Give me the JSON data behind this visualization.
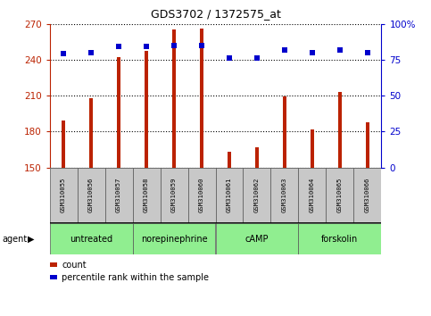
{
  "title": "GDS3702 / 1372575_at",
  "samples": [
    "GSM310055",
    "GSM310056",
    "GSM310057",
    "GSM310058",
    "GSM310059",
    "GSM310060",
    "GSM310061",
    "GSM310062",
    "GSM310063",
    "GSM310064",
    "GSM310065",
    "GSM310066"
  ],
  "counts": [
    189,
    208,
    242,
    247,
    265,
    266,
    163,
    167,
    209,
    182,
    213,
    188
  ],
  "percentiles": [
    79,
    80,
    84,
    84,
    85,
    85,
    76,
    76,
    82,
    80,
    82,
    80
  ],
  "ylim_left": [
    150,
    270
  ],
  "ylim_right": [
    0,
    100
  ],
  "yticks_left": [
    150,
    180,
    210,
    240,
    270
  ],
  "yticks_right": [
    0,
    25,
    50,
    75,
    100
  ],
  "ytick_labels_right": [
    "0",
    "25",
    "50",
    "75",
    "100%"
  ],
  "bar_color": "#BB2200",
  "dot_color": "#0000CC",
  "grid_color": "#000000",
  "agents": [
    {
      "label": "untreated",
      "start": 0,
      "end": 3
    },
    {
      "label": "norepinephrine",
      "start": 3,
      "end": 6
    },
    {
      "label": "cAMP",
      "start": 6,
      "end": 9
    },
    {
      "label": "forskolin",
      "start": 9,
      "end": 12
    }
  ],
  "agent_bg_color": "#90EE90",
  "sample_bg_color": "#C8C8C8",
  "legend_count_label": "count",
  "legend_percentile_label": "percentile rank within the sample",
  "xlabel_agent": "agent",
  "bar_width": 0.15
}
